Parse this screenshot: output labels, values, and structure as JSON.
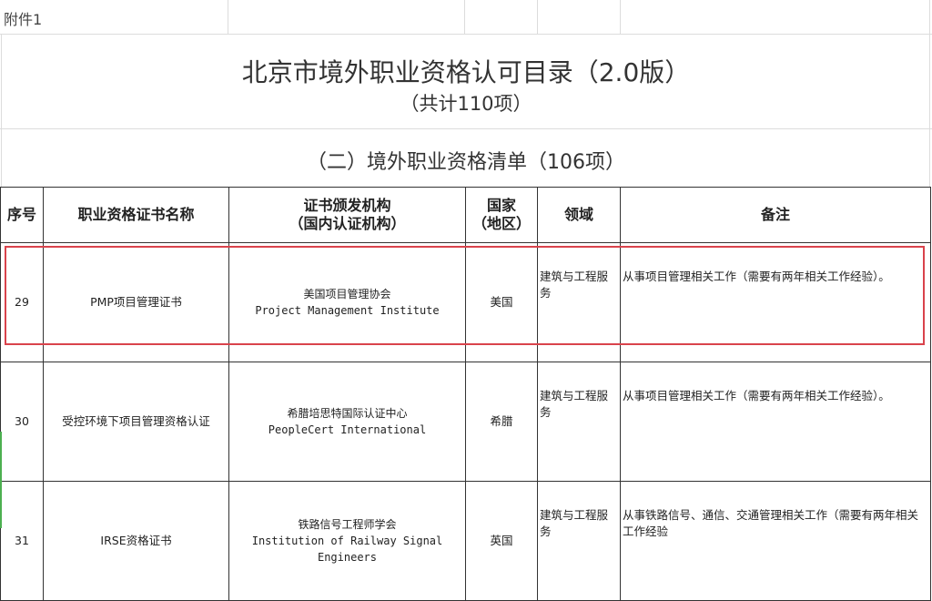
{
  "attachment_label": "附件1",
  "title": "北京市境外职业资格认可目录（2.0版）",
  "subtitle": "（共计110项）",
  "section_title": "（二）境外职业资格清单（106项）",
  "table": {
    "headers": [
      "序号",
      "职业资格证书名称",
      "证书颁发机构\n（国内认证机构）",
      "国家\n（地区）",
      "领域",
      "备注"
    ],
    "rows": [
      {
        "no": "29",
        "name": "PMP项目管理证书",
        "issuer_cn": "美国项目管理协会",
        "issuer_en": "Project Management Institute",
        "country": "美国",
        "field": "建筑与工程服务",
        "remark": "从事项目管理相关工作（需要有两年相关工作经验）。",
        "highlighted": true
      },
      {
        "no": "30",
        "name": "受控环境下项目管理资格认证",
        "issuer_cn": "希腊培思特国际认证中心",
        "issuer_en": "PeopleCert International",
        "country": "希腊",
        "field": "建筑与工程服务",
        "remark": "从事项目管理相关工作（需要有两年相关工作经验）。",
        "highlighted": false
      },
      {
        "no": "31",
        "name": "IRSE资格证书",
        "issuer_cn": "铁路信号工程师学会",
        "issuer_en": "Institution of Railway Signal Engineers",
        "country": "英国",
        "field": "建筑与工程服务",
        "remark": "从事铁路信号、通信、交通管理相关工作（需要有两年相关工作经验",
        "highlighted": false
      }
    ]
  },
  "colors": {
    "highlight_box": "#d9434c",
    "border": "#333333",
    "gridline": "#dcdcdc"
  }
}
